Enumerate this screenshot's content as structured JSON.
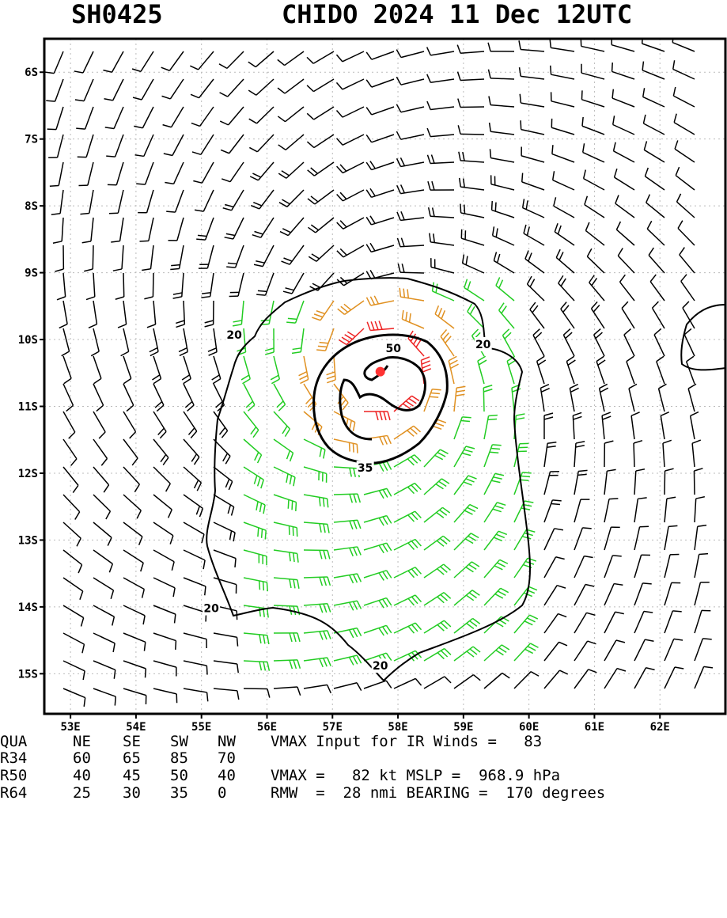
{
  "header": {
    "storm_id": "SH0425",
    "storm_title": "CHIDO 2024 11 Dec 12UTC"
  },
  "map": {
    "lon_range": [
      52.6,
      63.0
    ],
    "lat_range": [
      -5.5,
      -15.6
    ],
    "lon_labels": [
      "53E",
      "54E",
      "55E",
      "56E",
      "57E",
      "58E",
      "59E",
      "60E",
      "61E",
      "62E"
    ],
    "lat_labels": [
      "6S",
      "7S",
      "8S",
      "9S",
      "10S",
      "11S",
      "12S",
      "13S",
      "14S",
      "15S"
    ],
    "center": {
      "lon": 57.73,
      "lat": -10.48
    },
    "contour_labels": [
      {
        "text": "20",
        "lon": 55.5,
        "lat": -9.93
      },
      {
        "text": "20",
        "lon": 59.3,
        "lat": -10.07
      },
      {
        "text": "50",
        "lon": 57.93,
        "lat": -10.13
      },
      {
        "text": "35",
        "lon": 57.5,
        "lat": -11.92
      },
      {
        "text": "20",
        "lon": 55.15,
        "lat": -14.02
      },
      {
        "text": "20",
        "lon": 57.73,
        "lat": -14.88
      }
    ],
    "colors": {
      "calm": "#000000",
      "gale": "#22cc22",
      "storm": "#e09020",
      "hurricane": "#ee2222",
      "center": "#ff3333"
    }
  },
  "table": {
    "headers": [
      "QUA",
      "NE",
      "SE",
      "SW",
      "NW"
    ],
    "rows": [
      {
        "label": "R34",
        "values": [
          "60",
          "65",
          "85",
          "70"
        ]
      },
      {
        "label": "R50",
        "values": [
          "40",
          "45",
          "50",
          "40"
        ]
      },
      {
        "label": "R64",
        "values": [
          "25",
          "30",
          "35",
          "0"
        ]
      }
    ],
    "info1": "VMAX Input for IR Winds =   83",
    "info2": "VMAX =   82 kt MSLP =  968.9 hPa",
    "info3": "RMW  =  28 nmi BEARING =  170 degrees"
  }
}
